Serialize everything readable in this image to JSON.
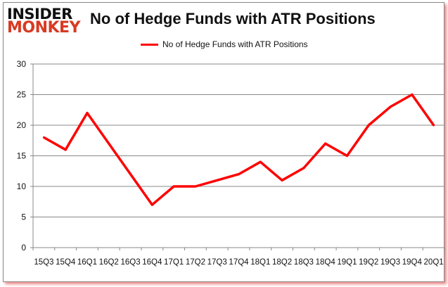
{
  "logo": {
    "line1": "INSIDER",
    "line2": "MONKEY"
  },
  "chart_data": {
    "type": "line",
    "title": "No of Hedge Funds with ATR Positions",
    "categories": [
      "15Q3",
      "15Q4",
      "16Q1",
      "16Q2",
      "16Q3",
      "16Q4",
      "17Q1",
      "17Q2",
      "17Q3",
      "17Q4",
      "18Q1",
      "18Q2",
      "18Q3",
      "18Q4",
      "19Q1",
      "19Q2",
      "19Q3",
      "19Q4",
      "20Q1"
    ],
    "series": [
      {
        "name": "No of Hedge Funds with ATR Positions",
        "color": "#ff0000",
        "values": [
          18,
          16,
          22,
          17,
          12,
          7,
          10,
          10,
          11,
          12,
          14,
          11,
          13,
          17,
          15,
          20,
          23,
          25,
          20
        ]
      }
    ],
    "ylim": [
      0,
      30
    ],
    "yticks": [
      0,
      5,
      10,
      15,
      20,
      25,
      30
    ],
    "grid": true,
    "legend": "top"
  }
}
